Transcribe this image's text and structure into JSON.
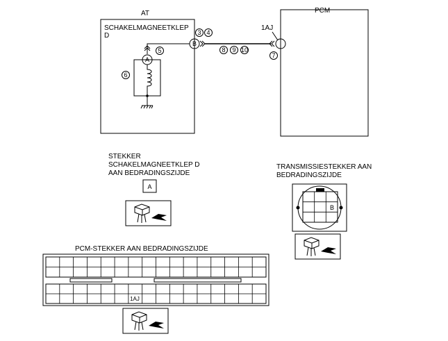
{
  "diagram": {
    "at_label": "AT",
    "pcm_label": "PCM",
    "solenoid_line1": "SCHAKELMAGNEETKLEP",
    "solenoid_line2": "D",
    "terminal_at": "B",
    "terminal_at_codes": [
      "3",
      "4"
    ],
    "wire_codes": [
      "8",
      "9",
      "10"
    ],
    "terminal_pcm": "1AJ",
    "terminal_pcm_code": "7",
    "component_a": "A",
    "code_5": "5",
    "code_6": "6"
  },
  "connector_solenoid": {
    "line1": "STEKKER",
    "line2": "SCHAKELMAGNEETKLEP D",
    "line3": "AAN BEDRADINGSZIJDE",
    "pin_label": "A"
  },
  "connector_transmission": {
    "line1": "TRANSMISSIESTEKKER AAN",
    "line2": "BEDRADINGSZIJDE",
    "pin_label": "B"
  },
  "connector_pcm": {
    "title": "PCM-STEKKER AAN BEDRADINGSZIJDE",
    "pin_label": "1AJ"
  }
}
